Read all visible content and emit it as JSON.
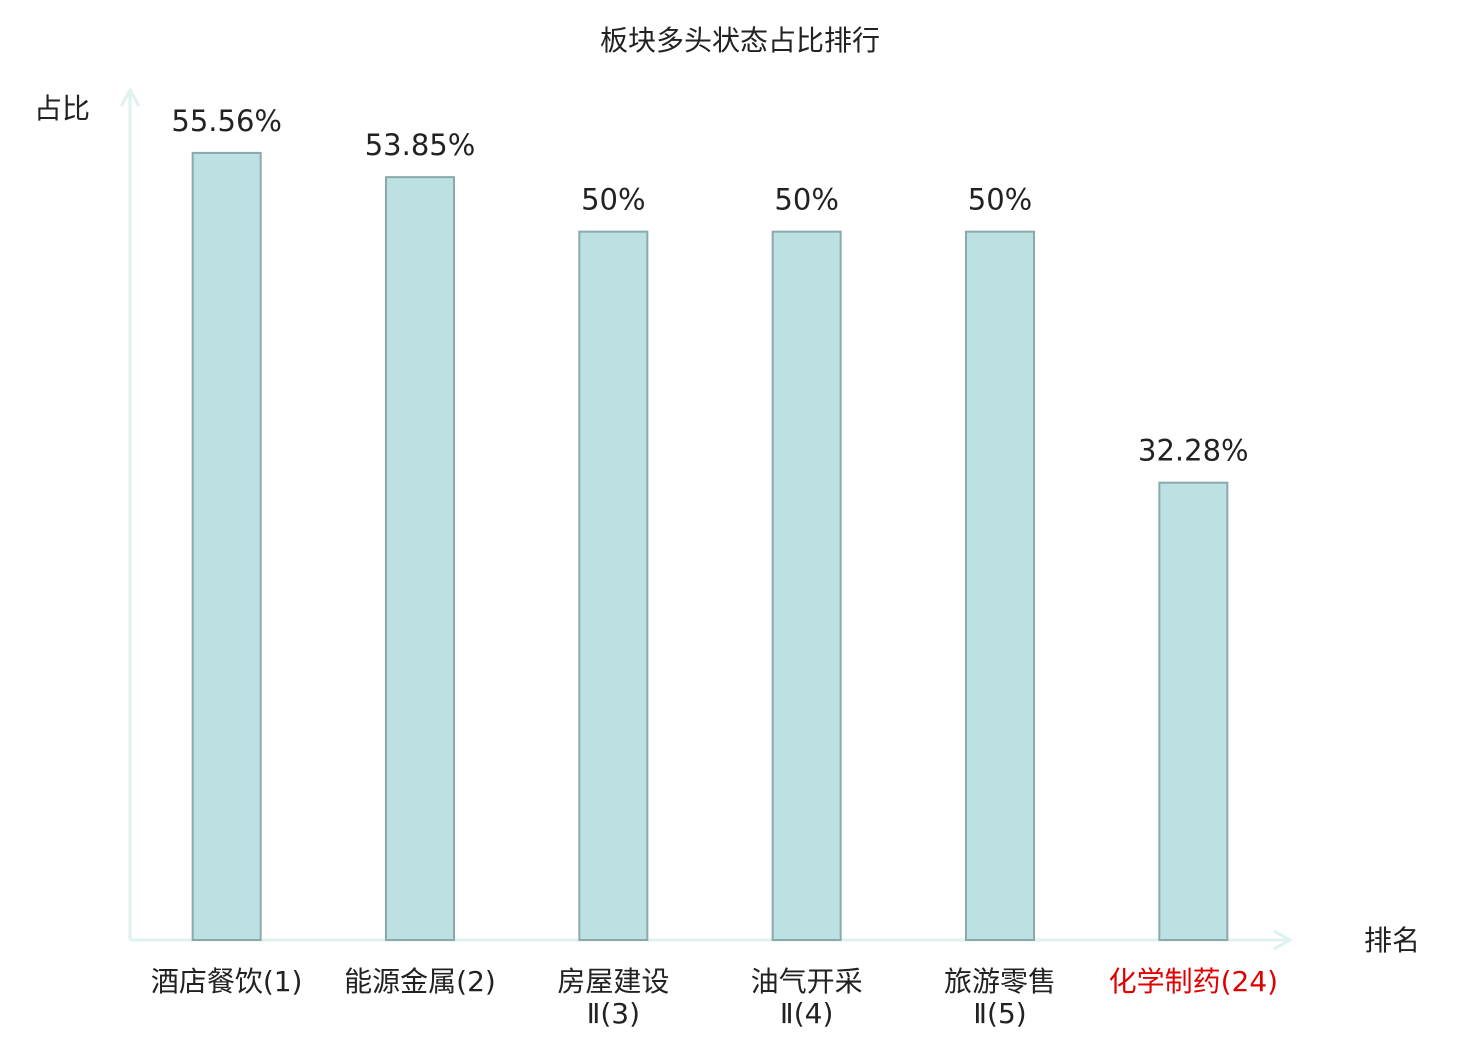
{
  "chart_data": {
    "type": "bar",
    "title": "板块多头状态占比排行",
    "y_label": "占比",
    "x_label": "排名",
    "categories": [
      "酒店餐饮(1)",
      "能源金属(2)",
      "房屋建设\nⅡ(3)",
      "油气开采\nⅡ(4)",
      "旅游零售\nⅡ(5)",
      "化学制药(24)"
    ],
    "category_colors": [
      "#222222",
      "#222222",
      "#222222",
      "#222222",
      "#222222",
      "#e00000"
    ],
    "values": [
      55.56,
      53.85,
      50,
      50,
      50,
      32.28
    ],
    "value_labels": [
      "55.56%",
      "53.85%",
      "50%",
      "50%",
      "50%",
      "32.28%"
    ],
    "color": "#bde0e3",
    "edge_color": "#8aa9ab",
    "axis_color": "#dff2ef",
    "ylim": [
      0,
      60
    ]
  }
}
